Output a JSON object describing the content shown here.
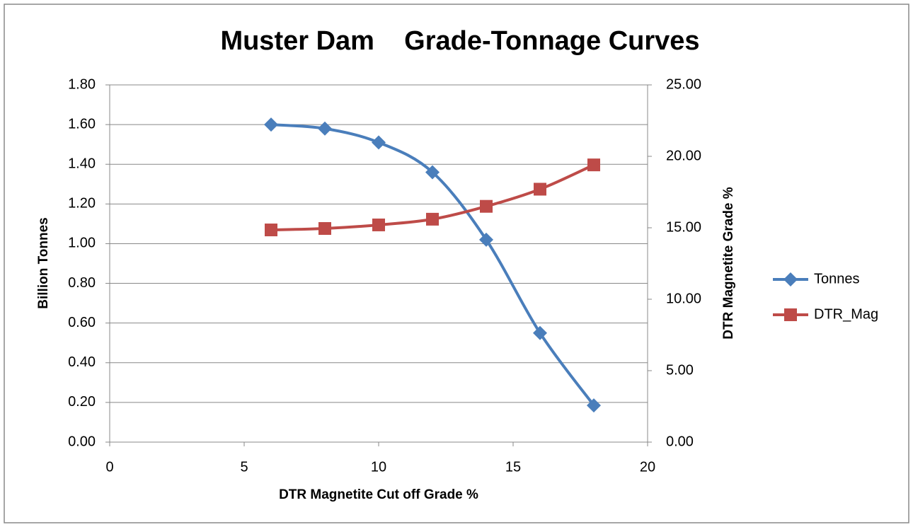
{
  "chart_data": {
    "type": "line",
    "title": "Muster Dam    Grade-Tonnage Curves",
    "x_label": "DTR Magnetite Cut off Grade %",
    "y_label": "Billion Tonnes",
    "y2_label": "DTR Magnetite Grade %",
    "x": [
      6,
      8,
      10,
      12,
      14,
      16,
      18
    ],
    "series": [
      {
        "name": "Tonnes",
        "color": "#4a7ebb",
        "marker": "diamond",
        "values": [
          1.6,
          1.58,
          1.51,
          1.36,
          1.02,
          0.55,
          0.185
        ]
      },
      {
        "name": "DTR_Mag",
        "color": "#be4b48",
        "marker": "square",
        "axis": "y2",
        "values": [
          14.85,
          14.95,
          15.2,
          15.6,
          16.5,
          17.7,
          19.4
        ]
      }
    ],
    "xlim": [
      0,
      20
    ],
    "xticks": [
      0,
      5,
      10,
      15,
      20
    ],
    "ylim": [
      0,
      1.8
    ],
    "yticks": [
      {
        "value": 0,
        "label": "0.00"
      },
      {
        "value": 0.2,
        "label": "0.20"
      },
      {
        "value": 0.4,
        "label": "0.40"
      },
      {
        "value": 0.6,
        "label": "0.60"
      },
      {
        "value": 0.8,
        "label": "0.80"
      },
      {
        "value": 1.0,
        "label": "1.00"
      },
      {
        "value": 1.2,
        "label": "1.20"
      },
      {
        "value": 1.4,
        "label": "1.40"
      },
      {
        "value": 1.6,
        "label": "1.60"
      },
      {
        "value": 1.8,
        "label": "1.80"
      }
    ],
    "y2lim": [
      0,
      25
    ],
    "y2ticks": [
      {
        "value": 0,
        "label": "0.00"
      },
      {
        "value": 5,
        "label": "5.00"
      },
      {
        "value": 10,
        "label": "10.00"
      },
      {
        "value": 15,
        "label": "15.00"
      },
      {
        "value": 20,
        "label": "20.00"
      },
      {
        "value": 25,
        "label": "25.00"
      }
    ],
    "grid": true,
    "smooth": true,
    "legend": "right"
  }
}
